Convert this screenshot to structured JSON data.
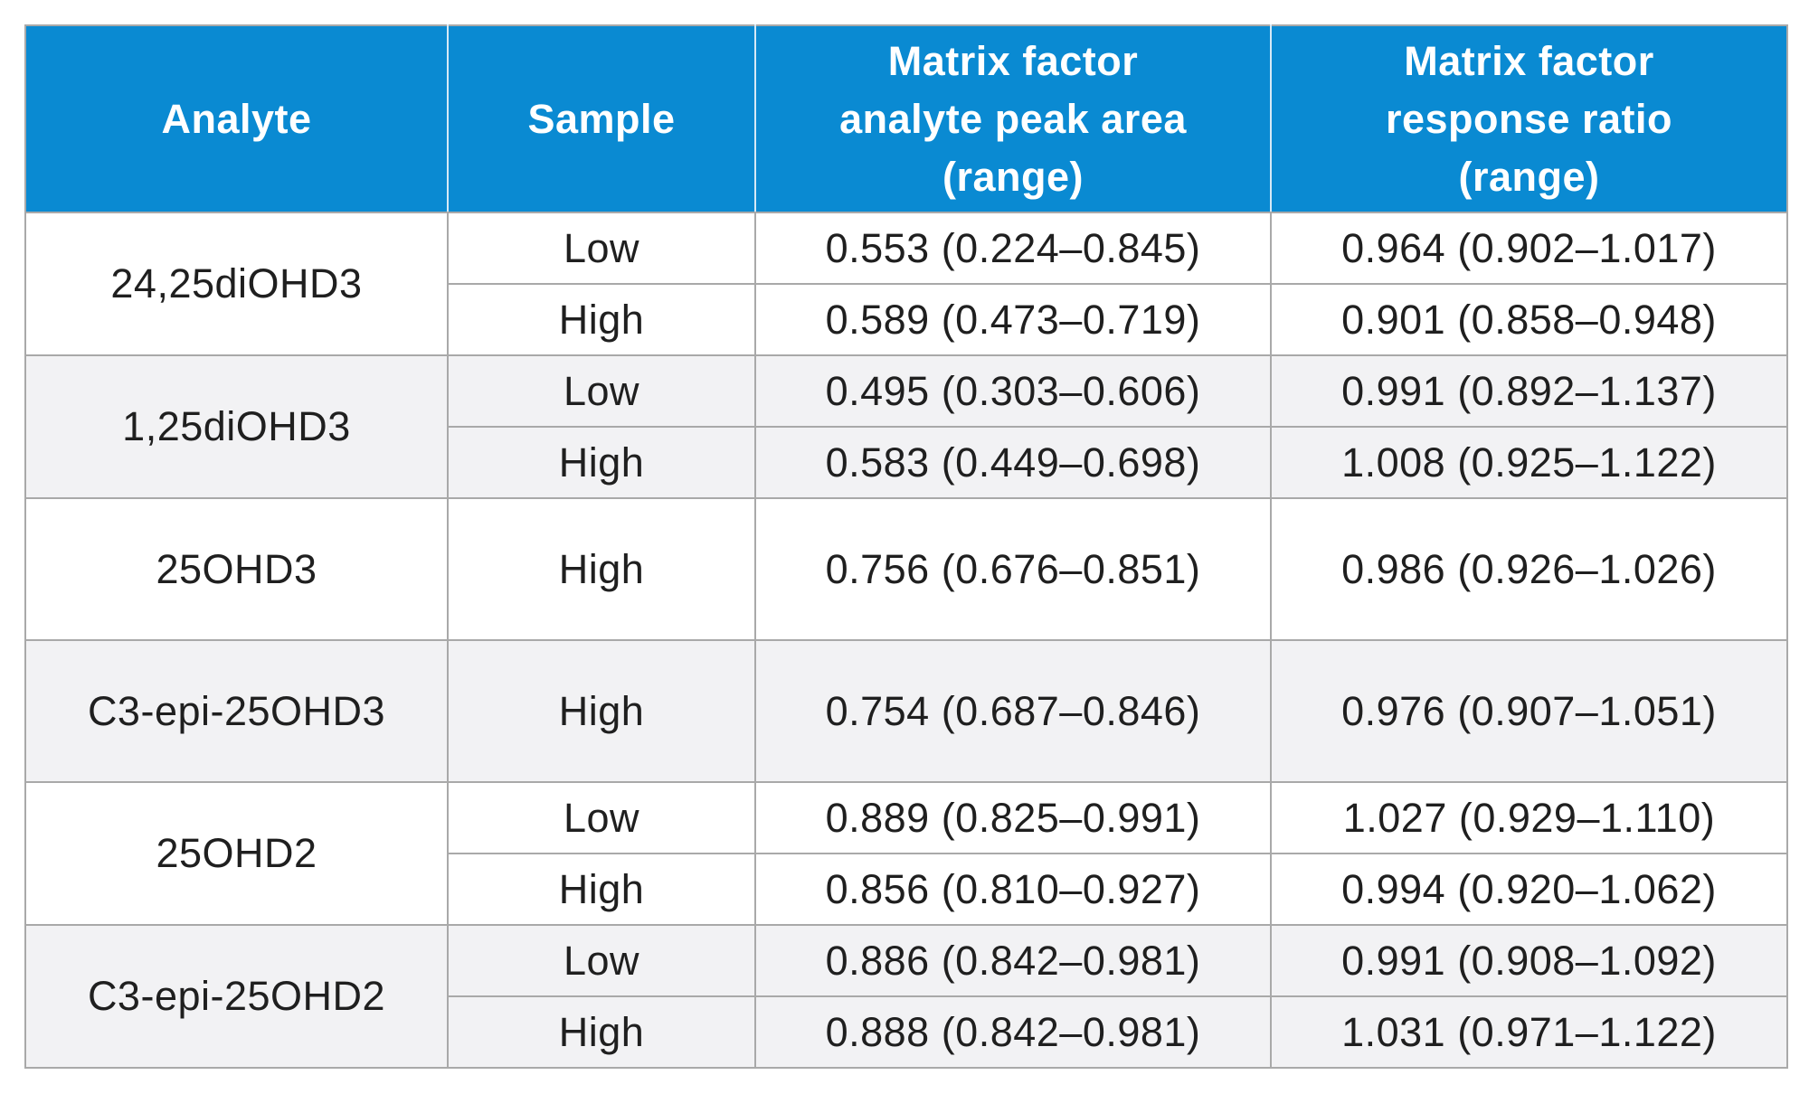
{
  "table": {
    "headers": [
      [
        "Analyte"
      ],
      [
        "Sample"
      ],
      [
        "Matrix factor",
        "analyte peak area",
        "(range)"
      ],
      [
        "Matrix factor",
        "response ratio",
        "(range)"
      ]
    ],
    "groups": [
      {
        "analyte": "24,25diOHD3",
        "rows": [
          {
            "sample": "Low",
            "peak_area": "0.553 (0.224–0.845)",
            "response_ratio": "0.964 (0.902–1.017)"
          },
          {
            "sample": "High",
            "peak_area": "0.589 (0.473–0.719)",
            "response_ratio": "0.901 (0.858–0.948)"
          }
        ]
      },
      {
        "analyte": "1,25diOHD3",
        "rows": [
          {
            "sample": "Low",
            "peak_area": "0.495 (0.303–0.606)",
            "response_ratio": "0.991 (0.892–1.137)"
          },
          {
            "sample": "High",
            "peak_area": "0.583 (0.449–0.698)",
            "response_ratio": "1.008 (0.925–1.122)"
          }
        ]
      },
      {
        "analyte": "25OHD3",
        "rows": [
          {
            "sample": "High",
            "peak_area": "0.756 (0.676–0.851)",
            "response_ratio": "0.986 (0.926–1.026)"
          }
        ]
      },
      {
        "analyte": "C3-epi-25OHD3",
        "rows": [
          {
            "sample": "High",
            "peak_area": "0.754 (0.687–0.846)",
            "response_ratio": "0.976 (0.907–1.051)"
          }
        ]
      },
      {
        "analyte": "25OHD2",
        "rows": [
          {
            "sample": "Low",
            "peak_area": "0.889 (0.825–0.991)",
            "response_ratio": "1.027 (0.929–1.110)"
          },
          {
            "sample": "High",
            "peak_area": "0.856 (0.810–0.927)",
            "response_ratio": "0.994 (0.920–1.062)"
          }
        ]
      },
      {
        "analyte": "C3-epi-25OHD2",
        "rows": [
          {
            "sample": "Low",
            "peak_area": "0.886 (0.842–0.981)",
            "response_ratio": "0.991 (0.908–1.092)"
          },
          {
            "sample": "High",
            "peak_area": "0.888 (0.842–0.981)",
            "response_ratio": "1.031 (0.971–1.122)"
          }
        ]
      }
    ],
    "colors": {
      "header_bg": "#0a8ad2",
      "header_text": "#ffffff",
      "band_alt": "#f2f2f4",
      "border": "#a9a9a9"
    }
  }
}
